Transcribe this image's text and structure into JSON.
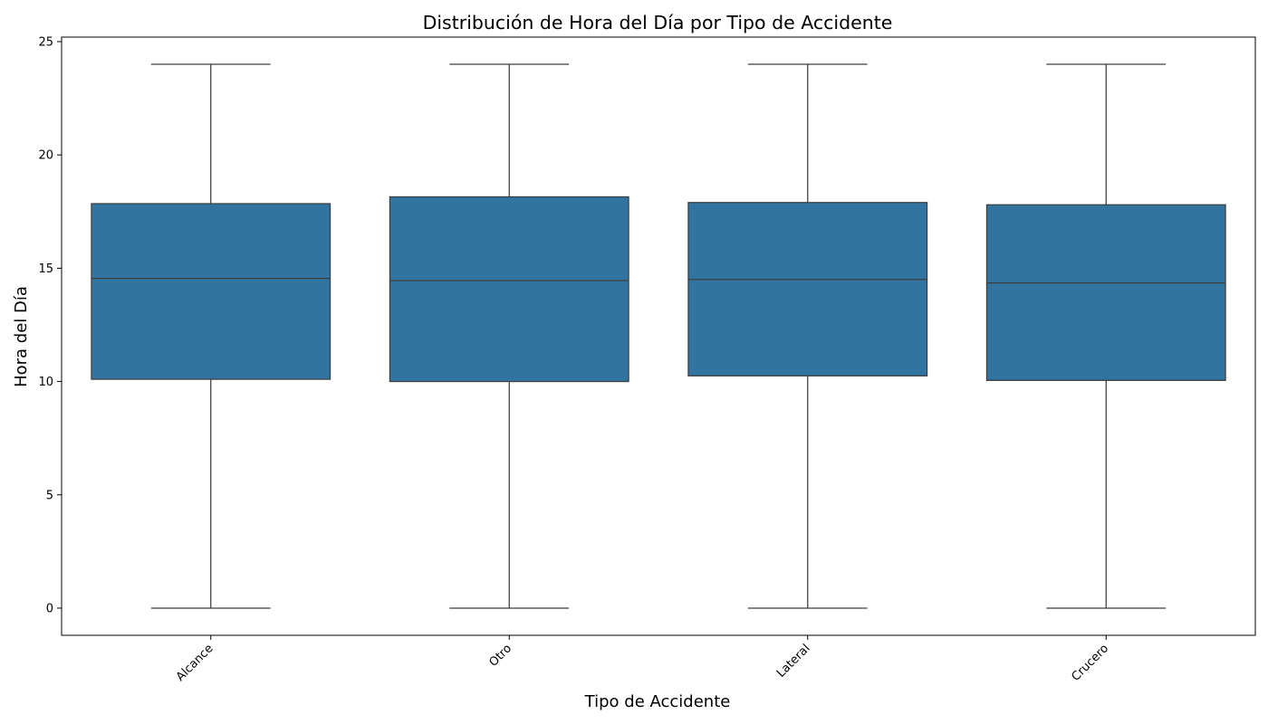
{
  "chart_data": {
    "type": "box",
    "title": "Distribución de Hora del Día por Tipo de Accidente",
    "xlabel": "Tipo de Accidente",
    "ylabel": "Hora del Día",
    "ylim": [
      -1.2,
      25.2
    ],
    "yticks": [
      0,
      5,
      10,
      15,
      20,
      25
    ],
    "ytick_labels": [
      "0",
      "5",
      "10",
      "15",
      "20",
      "25"
    ],
    "grid": false,
    "box_color": "#3274a1",
    "line_color": "#3d3d3d",
    "categories": [
      "Alcance",
      "Otro",
      "Lateral",
      "Crucero"
    ],
    "boxes": [
      {
        "category": "Alcance",
        "min": 0,
        "q1": 10.1,
        "median": 14.55,
        "q3": 17.85,
        "max": 24
      },
      {
        "category": "Otro",
        "min": 0,
        "q1": 10.0,
        "median": 14.45,
        "q3": 18.15,
        "max": 24
      },
      {
        "category": "Lateral",
        "min": 0,
        "q1": 10.25,
        "median": 14.5,
        "q3": 17.9,
        "max": 24
      },
      {
        "category": "Crucero",
        "min": 0,
        "q1": 10.05,
        "median": 14.35,
        "q3": 17.8,
        "max": 24
      }
    ]
  }
}
